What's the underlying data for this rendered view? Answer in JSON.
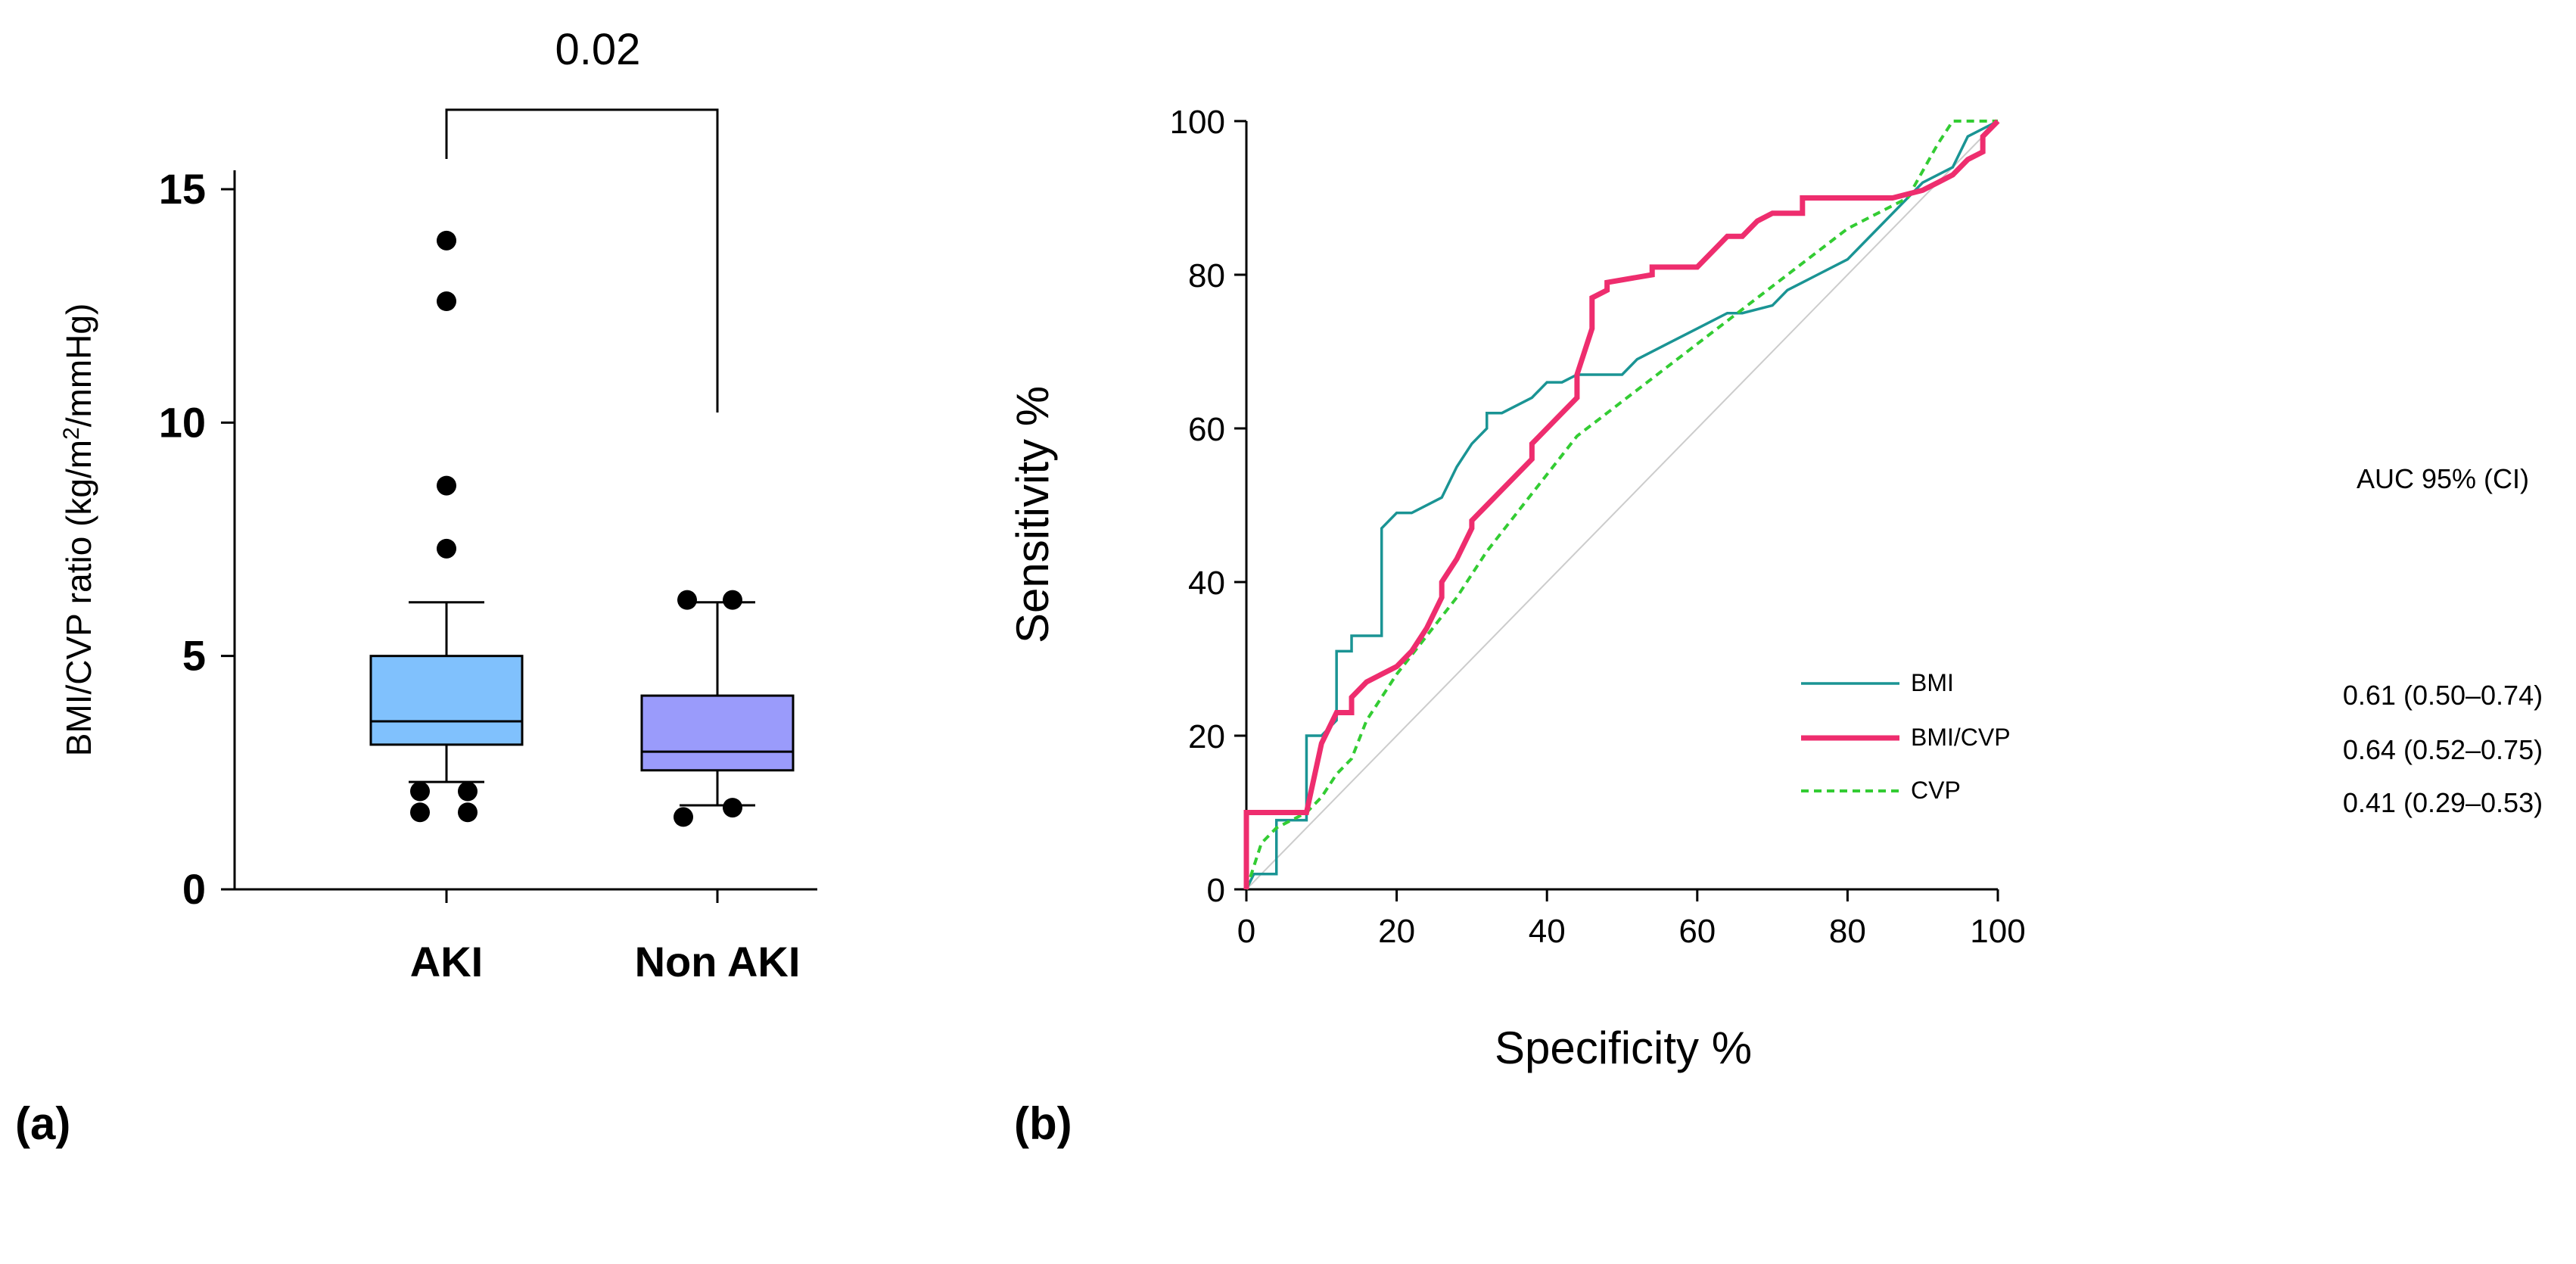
{
  "panels": {
    "a_label": "(a)",
    "b_label": "(b)"
  },
  "chart_data": [
    {
      "type": "box",
      "panel": "(a)",
      "ylabel_pre": "BMI/CVP ratio (kg/m",
      "ylabel_sup": "2",
      "ylabel_post": "/mmHg)",
      "ylim": [
        0,
        16
      ],
      "yticks": [
        0,
        5,
        10,
        15
      ],
      "significance": {
        "label": "0.02",
        "between": [
          "AKI",
          "Non AKI"
        ]
      },
      "colors": {
        "AKI": "#80C1FD",
        "Non AKI": "#9A9BFB"
      },
      "groups": [
        {
          "name": "AKI",
          "whisker_low": 2.3,
          "q1": 3.1,
          "median": 3.6,
          "q3": 5.0,
          "whisker_high": 6.15,
          "outliers": [
            1.65,
            2.1,
            1.65,
            2.1,
            7.3,
            8.65,
            12.6,
            13.9
          ]
        },
        {
          "name": "Non AKI",
          "whisker_low": 1.8,
          "q1": 2.55,
          "median": 2.95,
          "q3": 4.15,
          "whisker_high": 6.15,
          "outliers": [
            1.55,
            1.75,
            6.2,
            6.2
          ]
        }
      ]
    },
    {
      "type": "line",
      "panel": "(b)",
      "xlabel": "Specificity %",
      "ylabel": "Sensitivity %",
      "xlim": [
        0,
        100
      ],
      "ylim": [
        0,
        100
      ],
      "xticks": [
        0,
        20,
        40,
        60,
        80,
        100
      ],
      "yticks": [
        0,
        20,
        40,
        60,
        80,
        100
      ],
      "legend_header": "AUC 95% (CI)",
      "reference_line": {
        "color": "#cccccc"
      },
      "series": [
        {
          "name": "BMI",
          "auc": "0.61 (0.50–0.74)",
          "color": "#1A9494",
          "style": "solid",
          "x": [
            0,
            1,
            4,
            4,
            8,
            8,
            10,
            12,
            12,
            14,
            14,
            18,
            18,
            20,
            22,
            26,
            28,
            30,
            32,
            32,
            34,
            36,
            38,
            40,
            42,
            44,
            46,
            50,
            52,
            56,
            60,
            64,
            66,
            70,
            72,
            74,
            76,
            80,
            82,
            84,
            86,
            88,
            90,
            94,
            96,
            100
          ],
          "y": [
            0,
            2,
            2,
            9,
            9,
            20,
            20,
            22,
            31,
            31,
            33,
            33,
            47,
            49,
            49,
            51,
            55,
            58,
            60,
            62,
            62,
            63,
            64,
            66,
            66,
            67,
            67,
            67,
            69,
            71,
            73,
            75,
            75,
            76,
            78,
            79,
            80,
            82,
            84,
            86,
            88,
            90,
            92,
            94,
            98,
            100
          ]
        },
        {
          "name": "BMI/CVP",
          "auc": "0.64 (0.52–0.75)",
          "color": "#EE2D6E",
          "style": "thick",
          "x": [
            0,
            0,
            8,
            10,
            12,
            14,
            14,
            16,
            18,
            20,
            22,
            24,
            26,
            26,
            28,
            30,
            30,
            32,
            34,
            38,
            38,
            42,
            44,
            44,
            46,
            46,
            48,
            48,
            54,
            54,
            60,
            62,
            64,
            66,
            68,
            70,
            74,
            74,
            78,
            86,
            90,
            92,
            94,
            96,
            98,
            98,
            100
          ],
          "y": [
            0,
            10,
            10,
            19,
            23,
            23,
            25,
            27,
            28,
            29,
            31,
            34,
            38,
            40,
            43,
            47,
            48,
            50,
            52,
            56,
            58,
            62,
            64,
            67,
            73,
            77,
            78,
            79,
            80,
            81,
            81,
            83,
            85,
            85,
            87,
            88,
            88,
            90,
            90,
            90,
            91,
            92,
            93,
            95,
            96,
            98,
            100
          ]
        },
        {
          "name": "CVP",
          "auc": "0.41 (0.29–0.53)",
          "color": "#33CC33",
          "style": "dashed",
          "x": [
            0,
            2,
            4,
            6,
            8,
            10,
            12,
            14,
            16,
            18,
            20,
            24,
            28,
            32,
            36,
            40,
            44,
            48,
            52,
            56,
            60,
            64,
            68,
            72,
            76,
            80,
            84,
            88,
            92,
            94,
            96,
            100
          ],
          "y": [
            0,
            6,
            8,
            9,
            10,
            12,
            15,
            17,
            22,
            25,
            28,
            33,
            38,
            44,
            49,
            54,
            59,
            62,
            65,
            68,
            71,
            74,
            77,
            80,
            83,
            86,
            88,
            90,
            97,
            100,
            100,
            100
          ]
        }
      ]
    }
  ]
}
